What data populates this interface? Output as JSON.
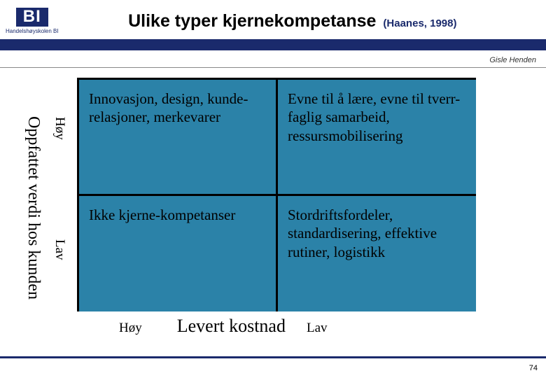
{
  "logo": {
    "top": "BI",
    "bottom": "Handelshøyskolen BI"
  },
  "title": {
    "main": "Ulike typer kjernekompetanse",
    "sub": "(Haanes, 1998)"
  },
  "author": "Gisle Henden",
  "matrix": {
    "y_axis": "Oppfattet verdi hos kunden",
    "y_high": "Høy",
    "y_low": "Lav",
    "x_axis": "Levert kostnad",
    "x_high": "Høy",
    "x_low": "Lav",
    "cells": {
      "top_left": "Innovasjon, design, kunde-relasjoner, merkevarer",
      "top_right": "Evne til å lære, evne til tverr-faglig samarbeid, ressursmobilisering",
      "bottom_left": "Ikke kjerne-kompetanser",
      "bottom_right": "Stordriftsfordeler, standardisering, effektive rutiner, logistikk"
    },
    "colors": {
      "cell_bg": "#2b82a8",
      "border": "#000000",
      "bar": "#1a2a6c"
    }
  },
  "page_number": "74"
}
